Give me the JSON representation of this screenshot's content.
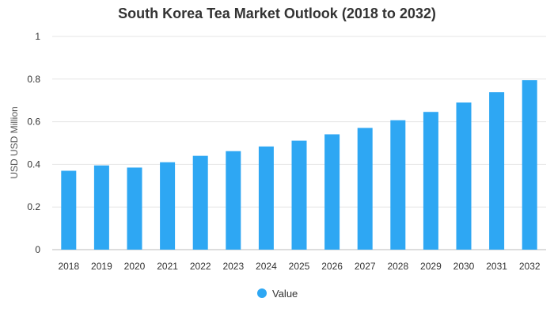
{
  "chart_data": {
    "type": "bar",
    "title": "South Korea Tea Market Outlook (2018 to 2032)",
    "xlabel": "",
    "ylabel": "USD USD Million",
    "categories": [
      "2018",
      "2019",
      "2020",
      "2021",
      "2022",
      "2023",
      "2024",
      "2025",
      "2026",
      "2027",
      "2028",
      "2029",
      "2030",
      "2031",
      "2032"
    ],
    "series": [
      {
        "name": "Value",
        "color": "#2ea7f3",
        "values": [
          0.37,
          0.395,
          0.385,
          0.41,
          0.44,
          0.462,
          0.484,
          0.511,
          0.541,
          0.571,
          0.607,
          0.646,
          0.69,
          0.739,
          0.795
        ]
      }
    ],
    "ylim": [
      0,
      1
    ],
    "yticks": [
      "0",
      "0.2",
      "0.4",
      "0.6",
      "0.8",
      "1"
    ],
    "grid": true,
    "legend": "bottom-center"
  }
}
